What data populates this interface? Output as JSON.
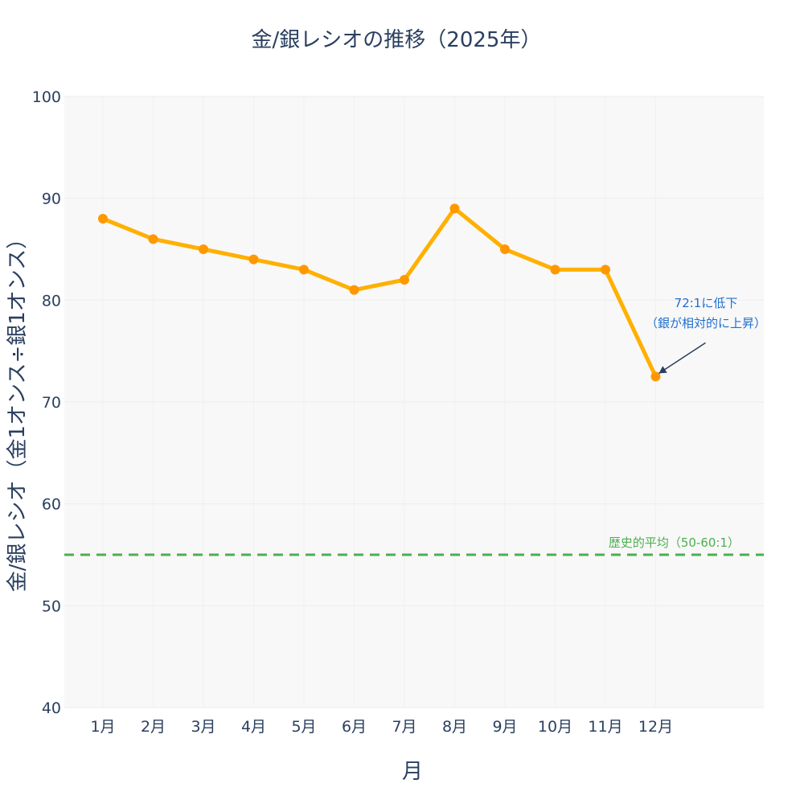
{
  "chart_data": {
    "type": "line",
    "title": "金/銀レシオの推移（2025年）",
    "xlabel": "月",
    "ylabel": "金/銀レシオ（金1オンス÷銀1オンス）",
    "categories": [
      "1月",
      "2月",
      "3月",
      "4月",
      "5月",
      "6月",
      "7月",
      "8月",
      "9月",
      "10月",
      "11月",
      "12月"
    ],
    "series": [
      {
        "name": "金/銀レシオ",
        "values": [
          88,
          86,
          85,
          84,
          83,
          81,
          82,
          89,
          85,
          83,
          83,
          72.5
        ]
      }
    ],
    "ylim": [
      40,
      100
    ],
    "yticks": [
      40,
      50,
      60,
      70,
      80,
      90,
      100
    ],
    "grid": true,
    "legend": "none",
    "reference_line": {
      "value": 55,
      "label": "歴史的平均（50-60:1）",
      "color": "#4caf50"
    },
    "annotation": {
      "category": "12月",
      "value": 72.5,
      "lines": [
        "72:1に低下",
        "（銀が相対的に上昇）"
      ],
      "color": "#1f6fd0"
    },
    "line_color": "#ffb000",
    "marker_color": "#ff9800"
  }
}
